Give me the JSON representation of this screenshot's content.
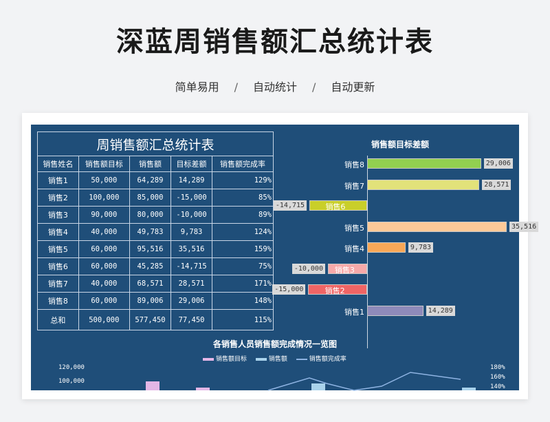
{
  "page": {
    "title": "深蓝周销售额汇总统计表",
    "subtitle": [
      "简单易用",
      "自动统计",
      "自动更新"
    ],
    "subtitle_sep": "/"
  },
  "table": {
    "title": "周销售额汇总统计表",
    "headers": [
      "销售姓名",
      "销售额目标",
      "销售额",
      "目标差额",
      "销售额完成率"
    ],
    "rows": [
      [
        "销售1",
        "50,000",
        "64,289",
        "14,289",
        "129%"
      ],
      [
        "销售2",
        "100,000",
        "85,000",
        "-15,000",
        "85%"
      ],
      [
        "销售3",
        "90,000",
        "80,000",
        "-10,000",
        "89%"
      ],
      [
        "销售4",
        "40,000",
        "49,783",
        "9,783",
        "124%"
      ],
      [
        "销售5",
        "60,000",
        "95,516",
        "35,516",
        "159%"
      ],
      [
        "销售6",
        "60,000",
        "45,285",
        "-14,715",
        "75%"
      ],
      [
        "销售7",
        "40,000",
        "68,571",
        "28,571",
        "171%"
      ],
      [
        "销售8",
        "60,000",
        "89,006",
        "29,006",
        "148%"
      ]
    ],
    "total": [
      "总和",
      "500,000",
      "577,450",
      "77,450",
      "115%"
    ]
  },
  "bar_chart": {
    "title": "销售额目标差额",
    "chart_data": {
      "type": "bar",
      "orientation": "horizontal",
      "categories": [
        "销售8",
        "销售7",
        "销售6",
        "销售5",
        "销售4",
        "销售3",
        "销售2",
        "销售1"
      ],
      "values": [
        29006,
        28571,
        -14715,
        35516,
        9783,
        -10000,
        -15000,
        14289
      ],
      "labels": [
        "29,006",
        "28,571",
        "-14,715",
        "35,516",
        "9,783",
        "-10,000",
        "-15,000",
        "14,289"
      ],
      "colors": [
        "#92d050",
        "#e2e27a",
        "#c9cf2a",
        "#fcc998",
        "#f9a857",
        "#f7a9a9",
        "#f06565",
        "#8e8aba"
      ]
    }
  },
  "combo_chart": {
    "title": "各销售人员销售额完成情况一览图",
    "legend": [
      "销售额目标",
      "销售额",
      "销售额完成率"
    ],
    "legend_colors": [
      "#e3b6e6",
      "#a9d3ec",
      "#8fb4e3"
    ],
    "y_left_ticks": [
      "120,000",
      "100,000"
    ],
    "y_right_ticks": [
      "180%",
      "160%",
      "140%"
    ]
  }
}
